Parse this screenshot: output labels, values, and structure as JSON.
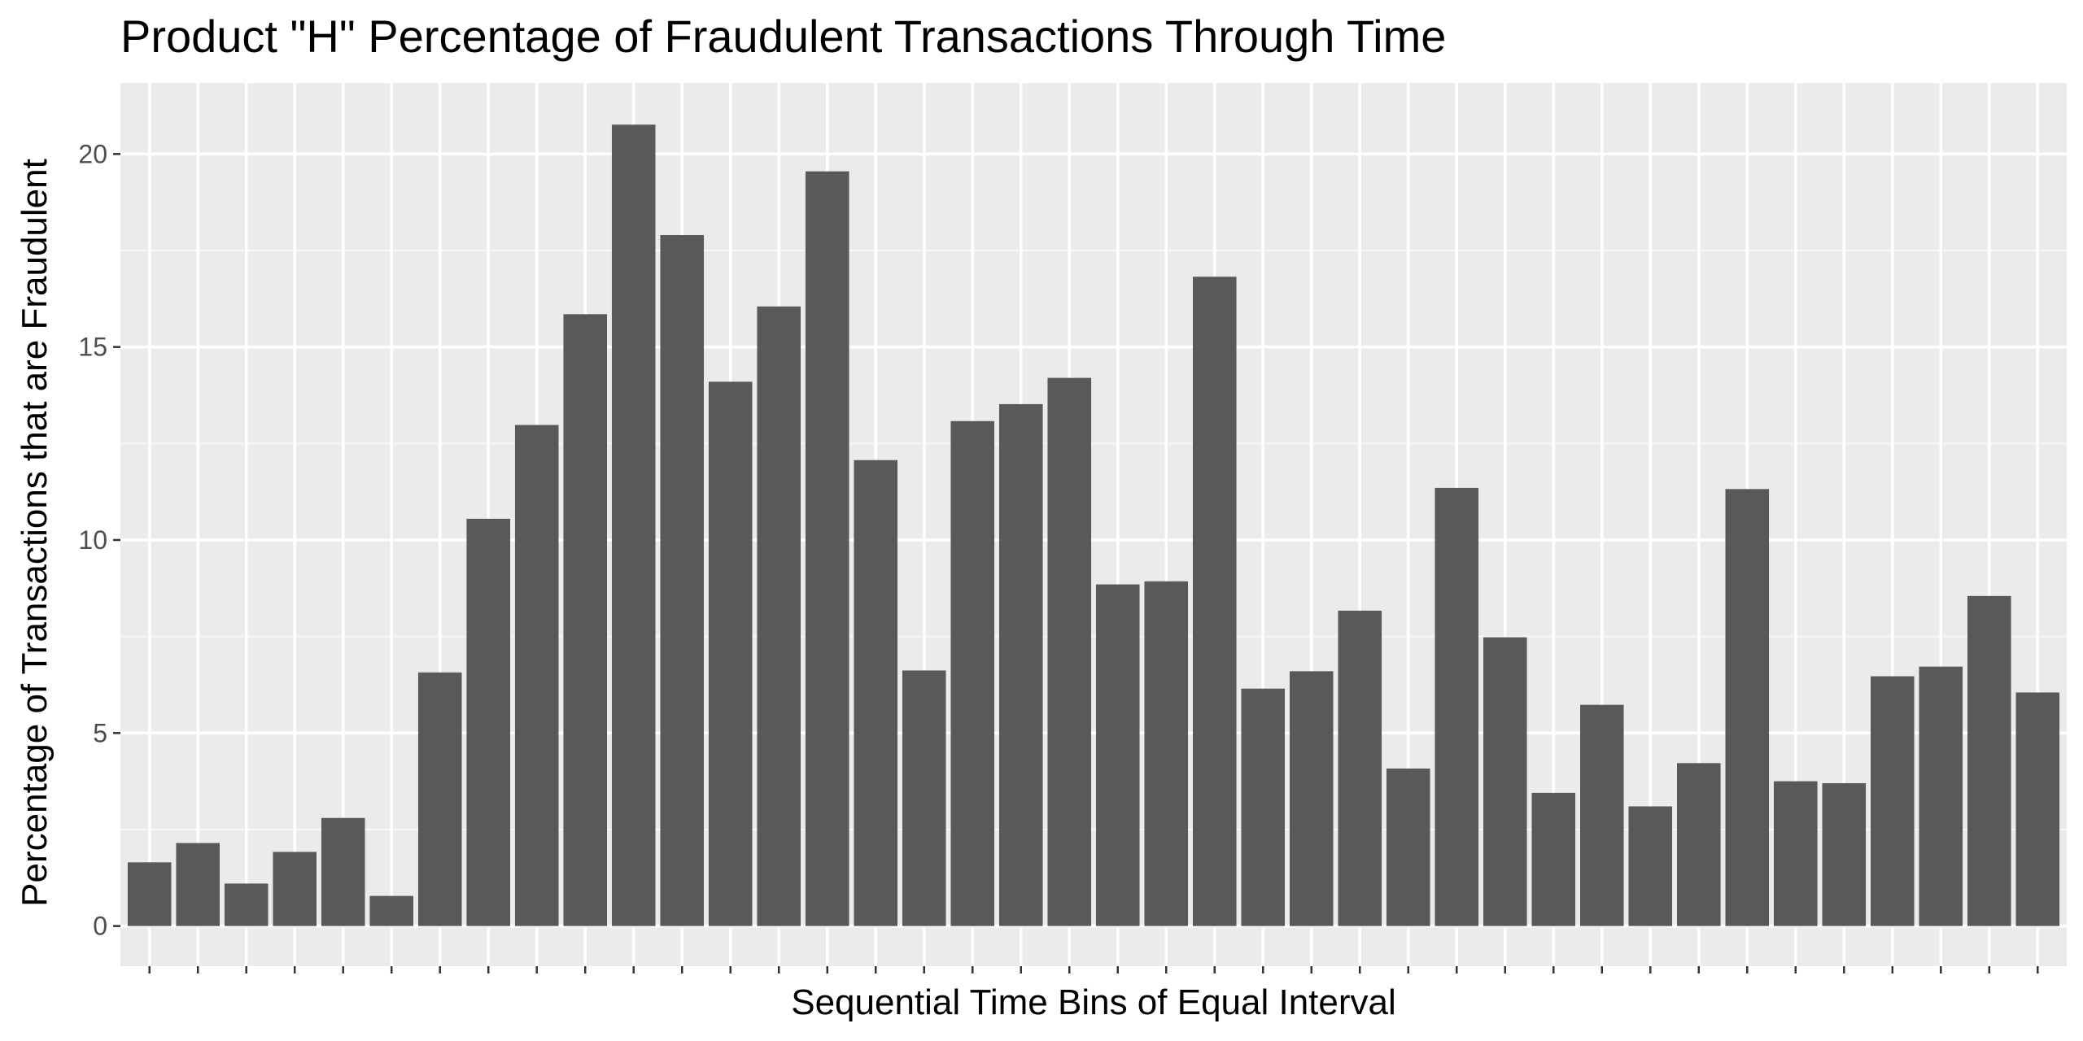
{
  "chart_data": {
    "type": "bar",
    "title": "Product \"H\" Percentage of Fraudulent Transactions Through Time",
    "xlabel": "Sequential Time Bins of Equal Interval",
    "ylabel": "Percentage of Transactions that are Fraudulent",
    "x_tick_labels_shown": false,
    "yticks": [
      0,
      5,
      10,
      15,
      20
    ],
    "ylim": [
      -1.04,
      21.84
    ],
    "grid": true,
    "legend": "none",
    "values": [
      1.65,
      2.15,
      1.1,
      1.92,
      2.8,
      0.78,
      6.57,
      10.55,
      12.98,
      15.85,
      20.76,
      17.9,
      14.1,
      16.05,
      19.55,
      12.07,
      6.62,
      13.08,
      13.52,
      14.2,
      8.85,
      8.93,
      16.82,
      6.15,
      6.6,
      8.17,
      4.08,
      11.35,
      7.48,
      3.45,
      5.73,
      3.1,
      4.22,
      11.32,
      3.75,
      3.7,
      6.47,
      6.72,
      8.55,
      6.05
    ],
    "colors": {
      "panel_background": "#ebebeb",
      "grid_major": "#ffffff",
      "grid_minor": "#f7f7f7",
      "bar_fill": "#595959",
      "tick_label": "#4d4d4d",
      "text": "#000000"
    }
  }
}
